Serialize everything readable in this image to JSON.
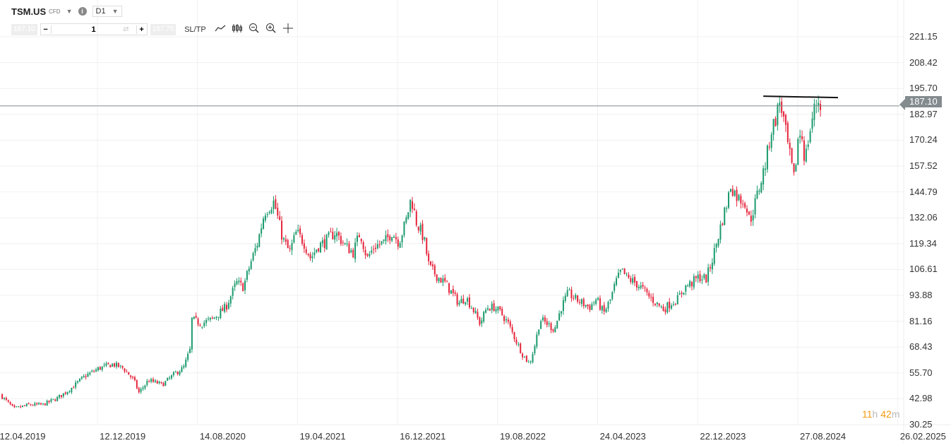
{
  "header": {
    "symbol": "TSM.US",
    "instrument_type": "CFD",
    "timeframe": "D1",
    "info_icon": "info-icon"
  },
  "trade": {
    "bid": "187.10",
    "ask": "187.75",
    "quantity": "1",
    "sltp_label": "SL/TP"
  },
  "tools": [
    "line-chart-icon",
    "candlestick-icon",
    "zoom-out-icon",
    "zoom-in-icon",
    "crosshair-move-icon"
  ],
  "y_axis": [
    "221.15",
    "208.42",
    "195.70",
    "182.97",
    "170.24",
    "157.52",
    "144.79",
    "132.06",
    "119.34",
    "106.61",
    "93.88",
    "81.16",
    "68.43",
    "55.70",
    "42.98",
    "30.25"
  ],
  "x_axis": [
    "12.04.2019",
    "12.12.2019",
    "14.08.2020",
    "19.04.2021",
    "16.12.2021",
    "19.08.2022",
    "24.04.2023",
    "22.12.2023",
    "27.08.2024",
    "26.02.2025"
  ],
  "current_price": "187.10",
  "timer": {
    "hours": "11",
    "h": "h",
    "minutes": "42",
    "m": "m"
  },
  "colors": {
    "up": "#1a9a6c",
    "down": "#e5243b",
    "price_line": "#838b8f",
    "timer": "#f39c12"
  },
  "chart_data": {
    "type": "candlestick",
    "x_origin": "2019-04-12",
    "x_unit": "days since origin",
    "ylim": [
      30.25,
      221.15
    ],
    "grid": true,
    "closes": [
      [
        -55,
        45
      ],
      [
        -21,
        38
      ],
      [
        14,
        40
      ],
      [
        48,
        40
      ],
      [
        83,
        43
      ],
      [
        118,
        48
      ],
      [
        152,
        54
      ],
      [
        187,
        58
      ],
      [
        221,
        60
      ],
      [
        247,
        58
      ],
      [
        273,
        52
      ],
      [
        285,
        46
      ],
      [
        308,
        52
      ],
      [
        343,
        50
      ],
      [
        377,
        56
      ],
      [
        394,
        58
      ],
      [
        412,
        68
      ],
      [
        415,
        82
      ],
      [
        438,
        80
      ],
      [
        464,
        82
      ],
      [
        481,
        85
      ],
      [
        498,
        88
      ],
      [
        524,
        100
      ],
      [
        541,
        98
      ],
      [
        559,
        110
      ],
      [
        576,
        120
      ],
      [
        593,
        135
      ],
      [
        616,
        140
      ],
      [
        637,
        122
      ],
      [
        654,
        115
      ],
      [
        671,
        125
      ],
      [
        689,
        120
      ],
      [
        706,
        112
      ],
      [
        723,
        118
      ],
      [
        740,
        120
      ],
      [
        766,
        125
      ],
      [
        792,
        118
      ],
      [
        810,
        115
      ],
      [
        827,
        125
      ],
      [
        844,
        112
      ],
      [
        862,
        118
      ],
      [
        887,
        120
      ],
      [
        905,
        125
      ],
      [
        922,
        120
      ],
      [
        939,
        130
      ],
      [
        952,
        142
      ],
      [
        965,
        130
      ],
      [
        983,
        122
      ],
      [
        996,
        108
      ],
      [
        1017,
        103
      ],
      [
        1035,
        100
      ],
      [
        1052,
        95
      ],
      [
        1069,
        90
      ],
      [
        1086,
        93
      ],
      [
        1104,
        87
      ],
      [
        1121,
        80
      ],
      [
        1138,
        88
      ],
      [
        1156,
        88
      ],
      [
        1173,
        85
      ],
      [
        1190,
        80
      ],
      [
        1208,
        72
      ],
      [
        1225,
        65
      ],
      [
        1242,
        60
      ],
      [
        1256,
        70
      ],
      [
        1268,
        82
      ],
      [
        1285,
        80
      ],
      [
        1303,
        77
      ],
      [
        1320,
        88
      ],
      [
        1337,
        95
      ],
      [
        1355,
        92
      ],
      [
        1372,
        90
      ],
      [
        1389,
        88
      ],
      [
        1406,
        92
      ],
      [
        1424,
        85
      ],
      [
        1441,
        92
      ],
      [
        1453,
        100
      ],
      [
        1467,
        106
      ],
      [
        1484,
        102
      ],
      [
        1502,
        100
      ],
      [
        1519,
        97
      ],
      [
        1536,
        93
      ],
      [
        1553,
        90
      ],
      [
        1571,
        87
      ],
      [
        1588,
        90
      ],
      [
        1605,
        92
      ],
      [
        1623,
        98
      ],
      [
        1640,
        100
      ],
      [
        1657,
        103
      ],
      [
        1675,
        102
      ],
      [
        1688,
        110
      ],
      [
        1701,
        120
      ],
      [
        1713,
        130
      ],
      [
        1727,
        140
      ],
      [
        1735,
        148
      ],
      [
        1752,
        142
      ],
      [
        1770,
        140
      ],
      [
        1782,
        130
      ],
      [
        1796,
        140
      ],
      [
        1809,
        150
      ],
      [
        1822,
        160
      ],
      [
        1834,
        175
      ],
      [
        1844,
        180
      ],
      [
        1856,
        190
      ],
      [
        1865,
        180
      ],
      [
        1873,
        170
      ],
      [
        1882,
        160
      ],
      [
        1891,
        150
      ],
      [
        1899,
        170
      ],
      [
        1908,
        175
      ],
      [
        1917,
        160
      ],
      [
        1925,
        170
      ],
      [
        1934,
        180
      ],
      [
        1943,
        188
      ],
      [
        1951,
        190
      ],
      [
        1957,
        187.1
      ]
    ],
    "annotations": [
      {
        "type": "trendline",
        "from": [
          1815,
          191.9
        ],
        "to": [
          1998,
          191.2
        ]
      },
      {
        "type": "hline",
        "price": 187.1
      }
    ]
  }
}
